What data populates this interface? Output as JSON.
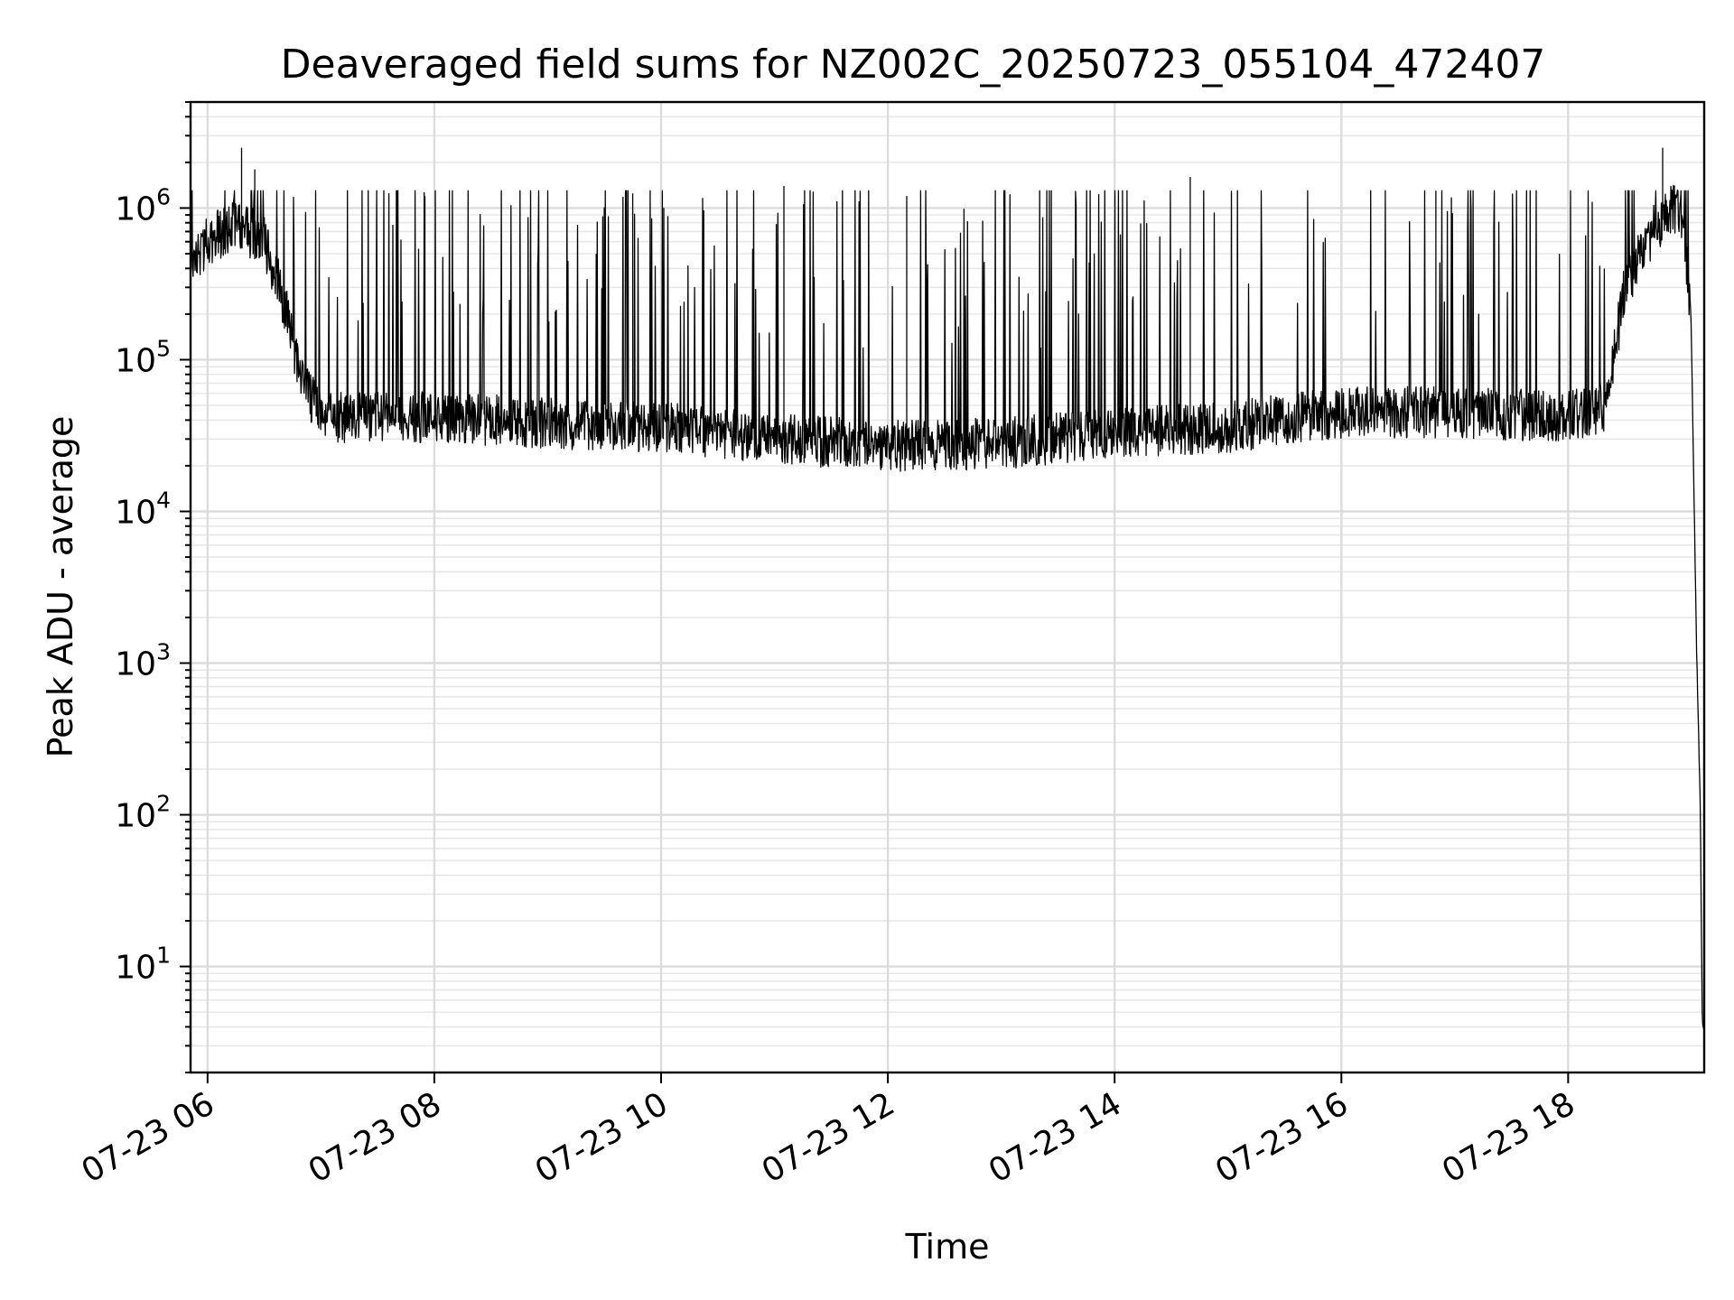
{
  "chart_data": {
    "type": "line",
    "title": "Deaveraged field sums for NZ002C_20250723_055104_472407",
    "xlabel": "Time",
    "ylabel": "Peak ADU - average",
    "yscale": "log",
    "grid": true,
    "xlim": [
      "2025-07-23T05:51",
      "2025-07-23T19:12"
    ],
    "ylim": [
      2,
      5000000
    ],
    "x_ticks": [
      {
        "value": "2025-07-23T06:00",
        "label": "07-23 06"
      },
      {
        "value": "2025-07-23T08:00",
        "label": "07-23 08"
      },
      {
        "value": "2025-07-23T10:00",
        "label": "07-23 10"
      },
      {
        "value": "2025-07-23T12:00",
        "label": "07-23 12"
      },
      {
        "value": "2025-07-23T14:00",
        "label": "07-23 14"
      },
      {
        "value": "2025-07-23T16:00",
        "label": "07-23 16"
      },
      {
        "value": "2025-07-23T18:00",
        "label": "07-23 18"
      }
    ],
    "y_ticks": [
      {
        "value": 10,
        "base": "10",
        "exp": "1"
      },
      {
        "value": 100,
        "base": "10",
        "exp": "2"
      },
      {
        "value": 1000,
        "base": "10",
        "exp": "3"
      },
      {
        "value": 10000,
        "base": "10",
        "exp": "4"
      },
      {
        "value": 100000,
        "base": "10",
        "exp": "5"
      },
      {
        "value": 1000000,
        "base": "10",
        "exp": "6"
      }
    ],
    "series": [
      {
        "color": "#000000",
        "baseline": [
          [
            "2025-07-23T05:51",
            400000
          ],
          [
            "2025-07-23T06:00",
            600000
          ],
          [
            "2025-07-23T06:15",
            800000
          ],
          [
            "2025-07-23T06:30",
            600000
          ],
          [
            "2025-07-23T06:40",
            250000
          ],
          [
            "2025-07-23T06:50",
            70000
          ],
          [
            "2025-07-23T07:00",
            42000
          ],
          [
            "2025-07-23T08:00",
            42000
          ],
          [
            "2025-07-23T09:00",
            38000
          ],
          [
            "2025-07-23T10:00",
            36000
          ],
          [
            "2025-07-23T11:00",
            30000
          ],
          [
            "2025-07-23T12:00",
            27000
          ],
          [
            "2025-07-23T13:00",
            28000
          ],
          [
            "2025-07-23T14:00",
            33000
          ],
          [
            "2025-07-23T15:00",
            36000
          ],
          [
            "2025-07-23T16:00",
            45000
          ],
          [
            "2025-07-23T17:00",
            45000
          ],
          [
            "2025-07-23T18:00",
            42000
          ],
          [
            "2025-07-23T18:20",
            50000
          ],
          [
            "2025-07-23T18:30",
            300000
          ],
          [
            "2025-07-23T18:45",
            700000
          ],
          [
            "2025-07-23T18:55",
            1000000
          ],
          [
            "2025-07-23T19:00",
            900000
          ],
          [
            "2025-07-23T19:05",
            200000
          ],
          [
            "2025-07-23T19:08",
            1200
          ],
          [
            "2025-07-23T19:10",
            100
          ],
          [
            "2025-07-23T19:11",
            4
          ],
          [
            "2025-07-23T19:12",
            4
          ]
        ],
        "spikes": [
          [
            "2025-07-23T06:18",
            2500000
          ],
          [
            "2025-07-23T06:25",
            1800000
          ],
          [
            "2025-07-23T07:55",
            1200000
          ],
          [
            "2025-07-23T09:45",
            1250000
          ],
          [
            "2025-07-23T11:05",
            1400000
          ],
          [
            "2025-07-23T12:10",
            1200000
          ],
          [
            "2025-07-23T14:40",
            1600000
          ],
          [
            "2025-07-23T16:50",
            1300000
          ],
          [
            "2025-07-23T18:50",
            2500000
          ]
        ],
        "noise_band_min": 15000,
        "spike_typical_max": 1000000
      }
    ]
  }
}
